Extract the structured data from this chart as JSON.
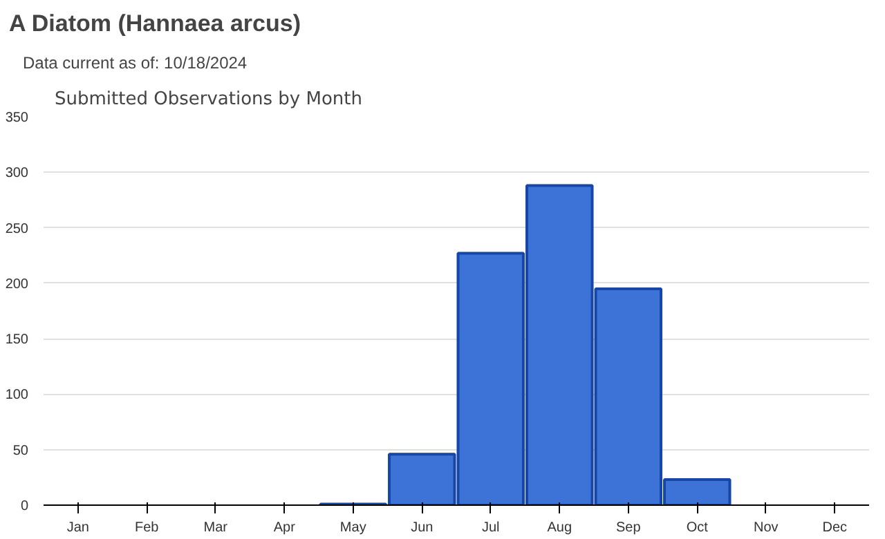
{
  "chart_data": {
    "type": "bar",
    "title": "A Diatom   (Hannaea arcus)",
    "subtitle": "Data current as of: 10/18/2024",
    "annotations": [
      "Submitted Observations by Month"
    ],
    "categories": [
      "Jan",
      "Feb",
      "Mar",
      "Apr",
      "May",
      "Jun",
      "Jul",
      "Aug",
      "Sep",
      "Oct",
      "Nov",
      "Dec"
    ],
    "values": [
      0,
      0,
      0,
      0,
      1,
      46,
      227,
      288,
      195,
      23,
      0,
      0
    ],
    "color": "#3d72d6",
    "ylim": [
      0,
      350
    ],
    "yticks": [
      0,
      50,
      100,
      150,
      200,
      250,
      300,
      350
    ],
    "grid": "y"
  }
}
